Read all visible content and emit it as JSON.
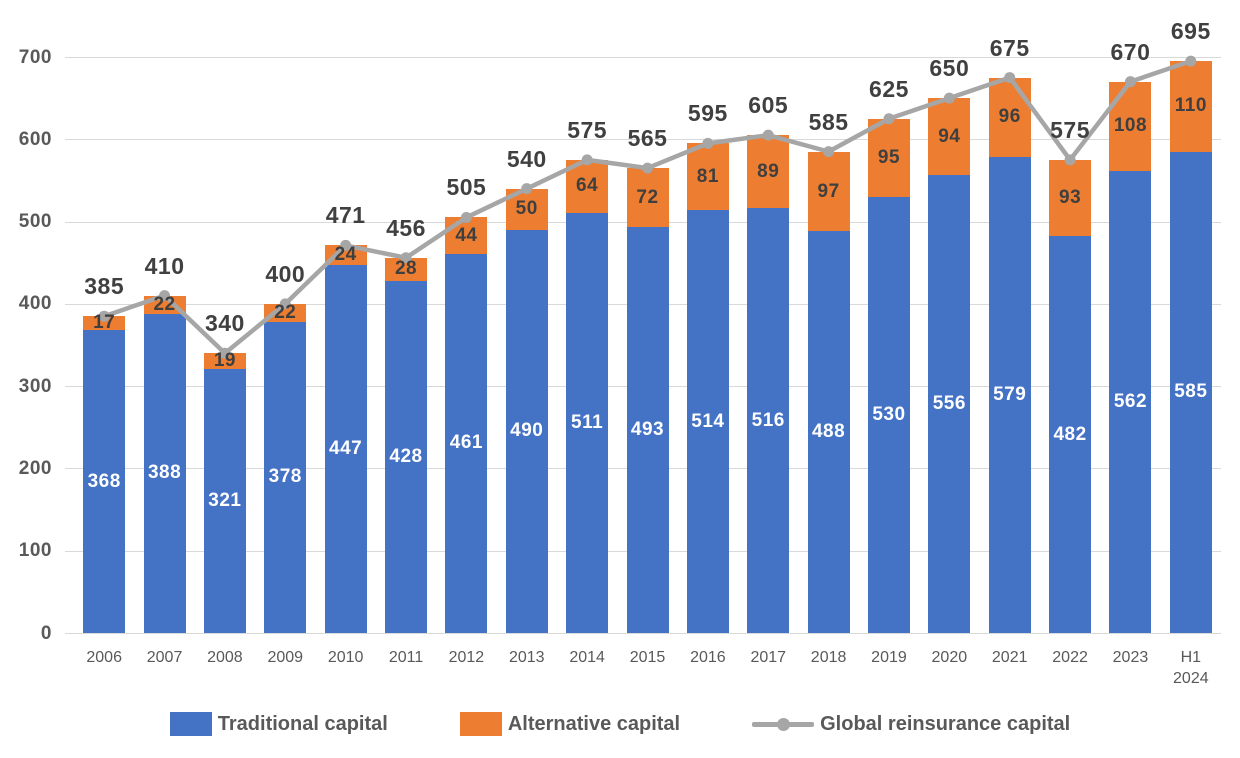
{
  "chart_data": {
    "type": "bar",
    "subtype": "stacked-bars-with-line-overlay",
    "categories": [
      "2006",
      "2007",
      "2008",
      "2009",
      "2010",
      "2011",
      "2012",
      "2013",
      "2014",
      "2015",
      "2016",
      "2017",
      "2018",
      "2019",
      "2020",
      "2021",
      "2022",
      "2023",
      "H1 2024"
    ],
    "series": [
      {
        "name": "Traditional capital",
        "type": "bar",
        "color": "#4472C4",
        "label_color": "#FFFFFF",
        "values": [
          368,
          388,
          321,
          378,
          447,
          428,
          461,
          490,
          511,
          493,
          514,
          516,
          488,
          530,
          556,
          579,
          482,
          562,
          585
        ]
      },
      {
        "name": "Alternative capital",
        "type": "bar",
        "color": "#ED7D31",
        "label_color": "#3F3F3F",
        "values": [
          17,
          22,
          19,
          22,
          24,
          28,
          44,
          50,
          64,
          72,
          81,
          89,
          97,
          95,
          94,
          96,
          93,
          108,
          110
        ]
      },
      {
        "name": "Global reinsurance capital",
        "type": "line",
        "color": "#A6A6A6",
        "label_color": "#404040",
        "values": [
          385,
          410,
          340,
          400,
          471,
          456,
          505,
          540,
          575,
          565,
          595,
          605,
          585,
          625,
          650,
          675,
          575,
          670,
          695
        ]
      }
    ],
    "title": "",
    "xlabel": "",
    "ylabel": "",
    "ylim": [
      0,
      700
    ],
    "yticks": [
      "0",
      "100",
      "200",
      "300",
      "400",
      "500",
      "600",
      "700"
    ],
    "grid": true,
    "legend_position": "bottom",
    "colors": {
      "gridline": "#D9D9D9",
      "axis_text": "#595959",
      "total_label_text": "#404040"
    }
  }
}
